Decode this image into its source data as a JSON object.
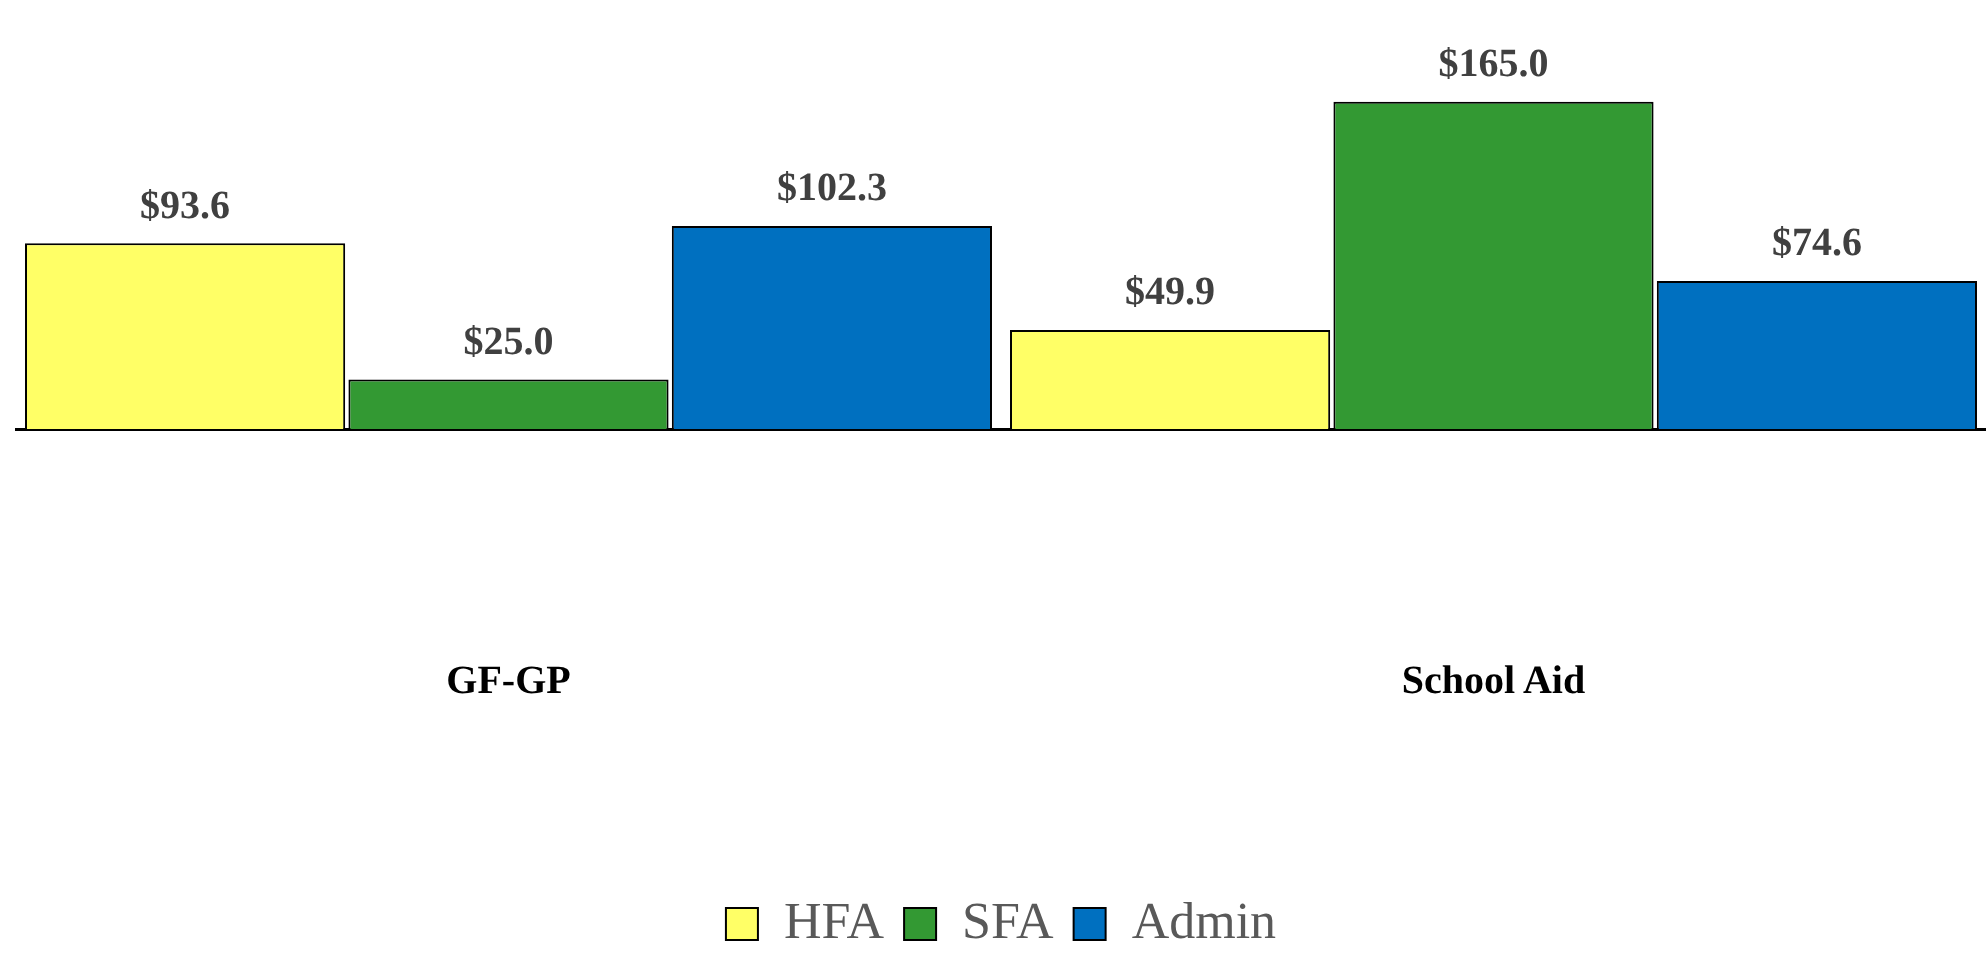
{
  "chart_data": {
    "type": "bar",
    "categories": [
      "GF-GP",
      "School Aid"
    ],
    "series": [
      {
        "name": "HFA",
        "color": "#ffff66",
        "values": [
          93.6,
          49.9
        ],
        "value_labels": [
          "$93.6",
          "$49.9"
        ]
      },
      {
        "name": "SFA",
        "color": "#339933",
        "values": [
          25.0,
          165.0
        ],
        "value_labels": [
          "$25.0",
          "$165.0"
        ]
      },
      {
        "name": "Admin",
        "color": "#0070c0",
        "values": [
          102.3,
          74.6
        ],
        "value_labels": [
          "$102.3",
          "$74.6"
        ]
      }
    ],
    "legend": "bottom",
    "grid": false
  }
}
